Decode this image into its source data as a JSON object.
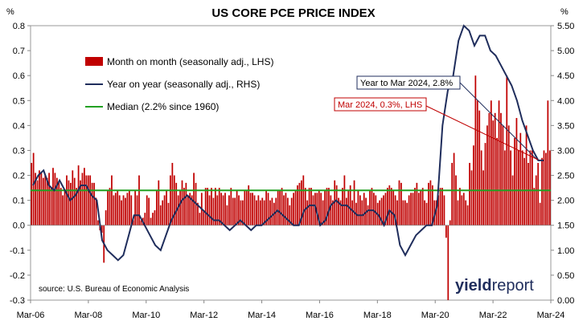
{
  "chart_data": {
    "type": "bar+line",
    "title": "US CORE PCE PRICE INDEX",
    "left_axis": {
      "unit": "%",
      "range": [
        -0.3,
        0.8
      ],
      "ticks": [
        "-0.3",
        "-0.2",
        "-0.1",
        "0.0",
        "0.1",
        "0.2",
        "0.3",
        "0.4",
        "0.5",
        "0.6",
        "0.7",
        "0.8"
      ],
      "tick_values": [
        -0.3,
        -0.2,
        -0.1,
        0.0,
        0.1,
        0.2,
        0.3,
        0.4,
        0.5,
        0.6,
        0.7,
        0.8
      ]
    },
    "right_axis": {
      "unit": "%",
      "range": [
        0.0,
        5.5
      ],
      "ticks": [
        "0.00",
        "0.50",
        "1.00",
        "1.50",
        "2.00",
        "2.50",
        "3.00",
        "3.50",
        "4.00",
        "4.50",
        "5.00",
        "5.50"
      ],
      "tick_values": [
        0.0,
        0.5,
        1.0,
        1.5,
        2.0,
        2.5,
        3.0,
        3.5,
        4.0,
        4.5,
        5.0,
        5.5
      ]
    },
    "x_axis": {
      "start": "Mar-06",
      "end": "Mar-24",
      "labels": [
        "Mar-06",
        "Mar-08",
        "Mar-10",
        "Mar-12",
        "Mar-14",
        "Mar-16",
        "Mar-18",
        "Mar-20",
        "Mar-22",
        "Mar-24"
      ]
    },
    "legend": {
      "placement": "top-left",
      "items": [
        {
          "label": "Month on month (seasonally adj., LHS)",
          "color": "#c00000",
          "kind": "bar"
        },
        {
          "label": "Year on year (seasonally adj., RHS)",
          "color": "#1f2d5c",
          "kind": "line"
        },
        {
          "label": "Median (2.2% since 1960)",
          "color": "#22a022",
          "kind": "line"
        }
      ]
    },
    "median_rhs": 2.2,
    "series": [
      {
        "name": "Month on month (seasonally adj., LHS)",
        "axis": "left",
        "values": [
          0.25,
          0.29,
          0.21,
          0.18,
          0.22,
          0.21,
          0.19,
          0.2,
          0.19,
          0.21,
          0.15,
          0.23,
          0.21,
          0.19,
          0.17,
          0.15,
          0.12,
          0.14,
          0.2,
          0.18,
          0.17,
          0.22,
          0.19,
          0.15,
          0.24,
          0.18,
          0.21,
          0.23,
          0.2,
          0.2,
          0.2,
          0.17,
          0.17,
          0.11,
          0.02,
          -0.02,
          -0.03,
          -0.15,
          0.06,
          0.14,
          0.15,
          0.2,
          0.12,
          0.13,
          0.14,
          0.12,
          0.1,
          0.12,
          0.11,
          0.13,
          0.14,
          0.12,
          0.02,
          0.14,
          0.12,
          0.2,
          0.02,
          0.03,
          0.05,
          0.12,
          0.11,
          0.03,
          0.05,
          0.06,
          0.14,
          0.18,
          0.08,
          0.1,
          0.12,
          0.14,
          0.09,
          0.2,
          0.25,
          0.2,
          0.17,
          0.12,
          0.14,
          0.18,
          0.15,
          0.17,
          0.12,
          0.13,
          0.12,
          0.21,
          0.17,
          0.09,
          0.05,
          0.13,
          0.06,
          0.15,
          0.15,
          0.12,
          0.15,
          0.11,
          0.15,
          0.12,
          0.15,
          0.13,
          0.12,
          0.13,
          0.08,
          0.12,
          0.15,
          0.11,
          0.11,
          0.14,
          0.12,
          0.1,
          0.1,
          0.14,
          0.14,
          0.16,
          0.13,
          0.13,
          0.12,
          0.1,
          0.12,
          0.1,
          0.11,
          0.1,
          0.14,
          0.13,
          0.1,
          0.11,
          0.09,
          0.11,
          0.14,
          0.14,
          0.15,
          0.12,
          0.13,
          0.11,
          0.08,
          0.11,
          0.13,
          0.14,
          0.16,
          0.17,
          0.18,
          0.2,
          0.15,
          0.1,
          0.15,
          0.15,
          0.12,
          0.13,
          0.13,
          0.14,
          0.13,
          0.1,
          0.14,
          0.15,
          0.15,
          0.12,
          0.1,
          0.18,
          0.16,
          0.11,
          0.1,
          0.15,
          0.2,
          0.11,
          0.14,
          0.16,
          0.1,
          0.18,
          0.09,
          0.14,
          0.12,
          0.1,
          0.13,
          0.11,
          0.08,
          0.14,
          0.15,
          0.13,
          0.12,
          0.09,
          0.1,
          0.11,
          0.12,
          0.13,
          0.15,
          0.16,
          0.15,
          0.14,
          0.12,
          0.1,
          0.18,
          0.17,
          0.1,
          0.1,
          0.09,
          0.12,
          0.13,
          0.13,
          0.15,
          0.17,
          0.13,
          0.14,
          0.15,
          0.1,
          0.09,
          0.17,
          0.18,
          0.16,
          0.1,
          0.1,
          0.12,
          0.15,
          0.15,
          0.12,
          -0.05,
          -0.3,
          0.02,
          0.25,
          0.29,
          0.2,
          0.1,
          0.15,
          0.12,
          0.13,
          0.1,
          0.08,
          0.25,
          0.22,
          0.32,
          0.6,
          0.5,
          0.46,
          0.3,
          0.22,
          0.33,
          0.4,
          0.45,
          0.5,
          0.42,
          0.45,
          0.35,
          0.5,
          0.45,
          0.4,
          0.3,
          0.6,
          0.4,
          0.3,
          0.2,
          0.35,
          0.43,
          0.3,
          0.37,
          0.3,
          0.27,
          0.4,
          0.25,
          0.3,
          0.3,
          0.15,
          0.2,
          0.25,
          0.09,
          0.27,
          0.3,
          0.29,
          0.5,
          0.3
        ]
      },
      {
        "name": "Year on year (seasonally adj., RHS)",
        "axis": "right",
        "points": [
          [
            0.0,
            2.3
          ],
          [
            3.0,
            2.5
          ],
          [
            6.0,
            2.6
          ],
          [
            9.0,
            2.3
          ],
          [
            12.0,
            2.2
          ],
          [
            15.0,
            2.4
          ],
          [
            18.0,
            2.2
          ],
          [
            21.0,
            2.0
          ],
          [
            24.0,
            2.1
          ],
          [
            27.0,
            2.3
          ],
          [
            30.0,
            2.3
          ],
          [
            33.0,
            2.1
          ],
          [
            36.0,
            2.0
          ],
          [
            39.0,
            1.2
          ],
          [
            42.0,
            1.0
          ],
          [
            45.0,
            0.9
          ],
          [
            48.0,
            0.8
          ],
          [
            51.0,
            0.9
          ],
          [
            54.0,
            1.3
          ],
          [
            57.0,
            1.7
          ],
          [
            60.0,
            1.7
          ],
          [
            63.0,
            1.5
          ],
          [
            66.0,
            1.3
          ],
          [
            69.0,
            1.1
          ],
          [
            72.0,
            1.0
          ],
          [
            75.0,
            1.3
          ],
          [
            78.0,
            1.6
          ],
          [
            81.0,
            1.8
          ],
          [
            84.0,
            2.0
          ],
          [
            87.0,
            2.1
          ],
          [
            90.0,
            2.0
          ],
          [
            93.0,
            1.9
          ],
          [
            96.0,
            1.8
          ],
          [
            99.0,
            1.7
          ],
          [
            102.0,
            1.6
          ],
          [
            105.0,
            1.6
          ],
          [
            108.0,
            1.5
          ],
          [
            111.0,
            1.4
          ],
          [
            114.0,
            1.5
          ],
          [
            117.0,
            1.6
          ],
          [
            120.0,
            1.5
          ],
          [
            123.0,
            1.4
          ],
          [
            126.0,
            1.5
          ],
          [
            129.0,
            1.5
          ],
          [
            132.0,
            1.6
          ],
          [
            135.0,
            1.7
          ],
          [
            138.0,
            1.8
          ],
          [
            141.0,
            1.7
          ],
          [
            144.0,
            1.6
          ],
          [
            147.0,
            1.5
          ],
          [
            150.0,
            1.5
          ],
          [
            153.0,
            1.8
          ],
          [
            156.0,
            1.9
          ],
          [
            159.0,
            1.9
          ],
          [
            162.0,
            1.5
          ],
          [
            165.0,
            1.6
          ],
          [
            168.0,
            1.9
          ],
          [
            171.0,
            2.0
          ],
          [
            174.0,
            1.9
          ],
          [
            177.0,
            1.9
          ],
          [
            180.0,
            1.8
          ],
          [
            183.0,
            1.7
          ],
          [
            186.0,
            1.7
          ],
          [
            189.0,
            1.8
          ],
          [
            192.0,
            1.8
          ],
          [
            195.0,
            1.7
          ],
          [
            198.0,
            1.5
          ],
          [
            201.0,
            1.8
          ],
          [
            204.0,
            1.7
          ],
          [
            207.0,
            1.1
          ],
          [
            210.0,
            0.9
          ],
          [
            213.0,
            1.1
          ],
          [
            216.0,
            1.3
          ],
          [
            219.0,
            1.4
          ],
          [
            222.0,
            1.5
          ],
          [
            225.0,
            1.5
          ],
          [
            228.0,
            1.9
          ],
          [
            231.0,
            3.5
          ],
          [
            234.0,
            4.2
          ],
          [
            237.0,
            4.5
          ],
          [
            240.0,
            5.2
          ],
          [
            243.0,
            5.5
          ],
          [
            246.0,
            5.4
          ],
          [
            249.0,
            5.1
          ],
          [
            252.0,
            5.3
          ],
          [
            255.0,
            5.3
          ],
          [
            258.0,
            5.0
          ],
          [
            261.0,
            4.9
          ],
          [
            264.0,
            4.7
          ],
          [
            267.0,
            4.5
          ],
          [
            270.0,
            4.3
          ],
          [
            273.0,
            4.0
          ],
          [
            276.0,
            3.6
          ],
          [
            279.0,
            3.3
          ],
          [
            282.0,
            3.0
          ],
          [
            285.0,
            2.8
          ],
          [
            288.0,
            2.8
          ]
        ]
      }
    ],
    "annotations": {
      "year": "Year to Mar 2024, 2.8%",
      "month": "Mar 2024, 0.3%, LHS"
    },
    "source": "source: U.S. Bureau of Economic Analysis"
  },
  "logo": {
    "part1": "yield",
    "part2": "report"
  }
}
